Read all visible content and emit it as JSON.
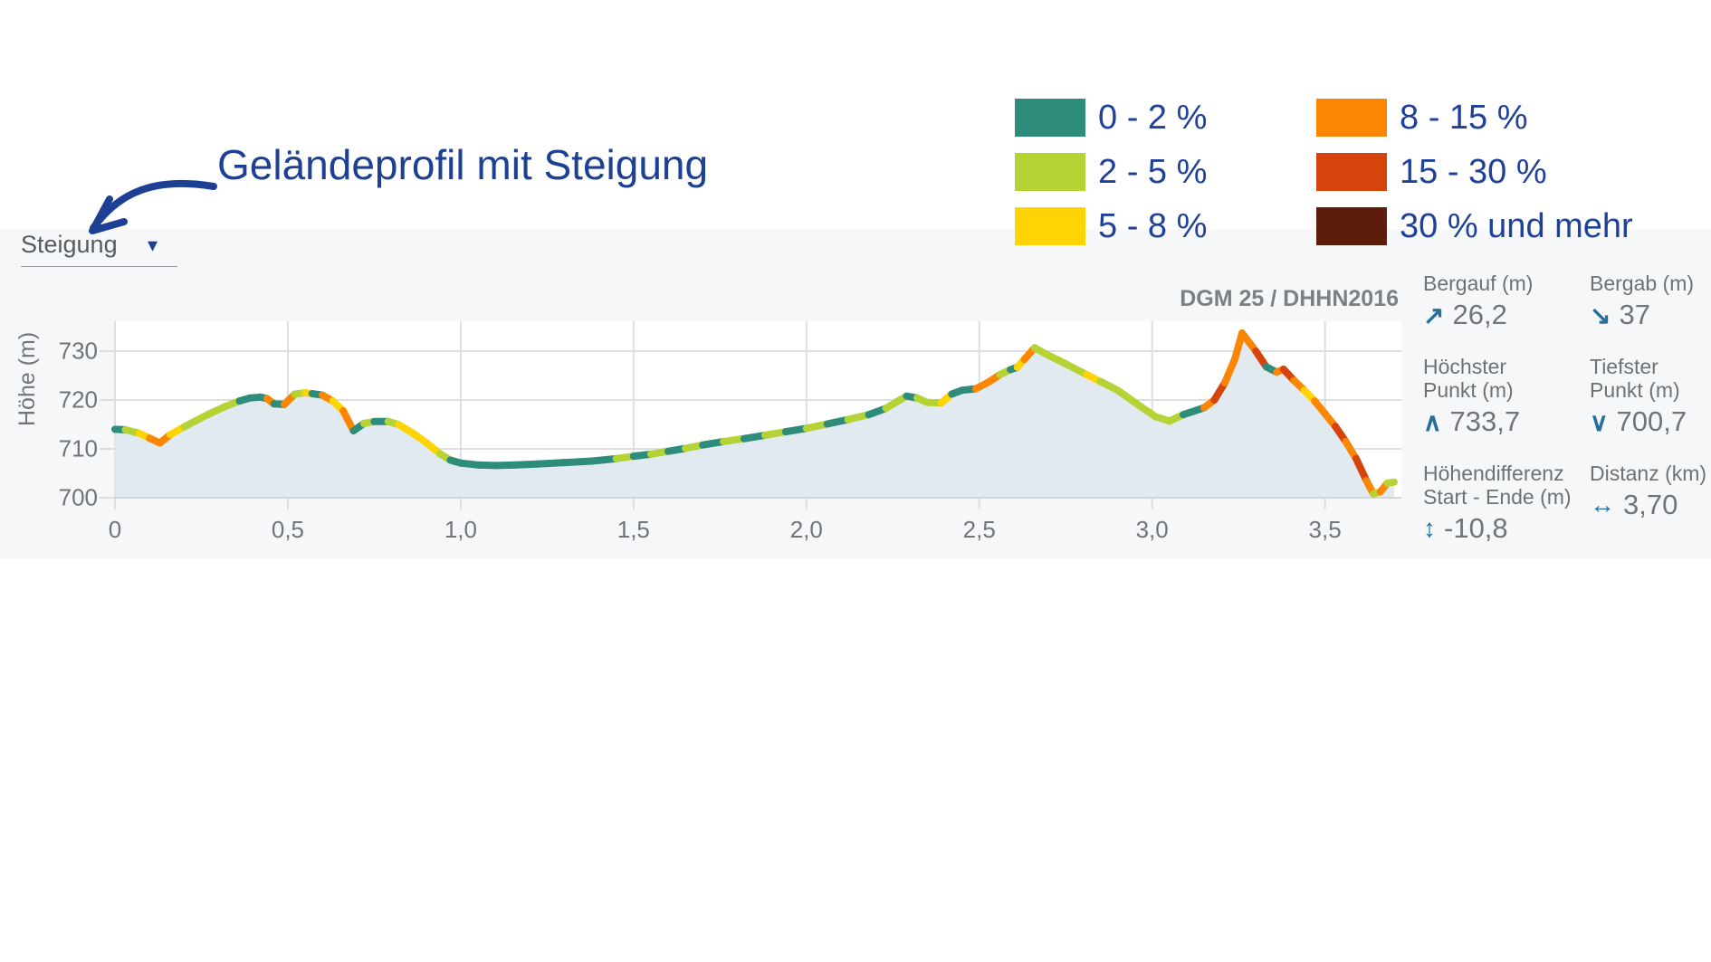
{
  "annotation": {
    "text": "Geländeprofil mit Steigung",
    "color": "#1e4094"
  },
  "dropdown": {
    "label": "Steigung",
    "caret_icon": "▾"
  },
  "legend": {
    "items": [
      {
        "label": "0 - 2 %",
        "color": "#2d8d7a"
      },
      {
        "label": "2 - 5 %",
        "color": "#b5d335"
      },
      {
        "label": "5 - 8 %",
        "color": "#ffd404"
      },
      {
        "label": "8 - 15 %",
        "color": "#fb8604"
      },
      {
        "label": "15 - 30 %",
        "color": "#d6430c"
      },
      {
        "label": "30 % und mehr",
        "color": "#5e1c0a"
      }
    ]
  },
  "chart": {
    "source_label": "DGM 25 / DHHN2016",
    "y_axis_title": "Höhe (m)"
  },
  "stats": {
    "items": [
      {
        "key": "bergauf",
        "label_lines": [
          "Bergauf (m)"
        ],
        "icon": "↗",
        "icon_name": "uphill-arrow-icon",
        "value": "26,2"
      },
      {
        "key": "bergab",
        "label_lines": [
          "Bergab (m)"
        ],
        "icon": "↘",
        "icon_name": "downhill-arrow-icon",
        "value": "37"
      },
      {
        "key": "hoechster-punkt",
        "label_lines": [
          "Höchster",
          "Punkt (m)"
        ],
        "icon": "∧",
        "icon_name": "chevron-up-icon",
        "value": "733,7"
      },
      {
        "key": "tiefster-punkt",
        "label_lines": [
          "Tiefster",
          "Punkt (m)"
        ],
        "icon": "∨",
        "icon_name": "chevron-down-icon",
        "value": "700,7"
      },
      {
        "key": "hoehendifferenz",
        "label_lines": [
          "Höhendifferenz",
          "Start - Ende (m)"
        ],
        "icon": "↕",
        "icon_name": "vertical-arrows-icon",
        "value": "-10,8"
      },
      {
        "key": "distanz",
        "label_lines": [
          "Distanz (km)"
        ],
        "icon": "↔",
        "icon_name": "horizontal-arrows-icon",
        "value": "3,70"
      }
    ]
  },
  "chart_data": {
    "type": "area",
    "title": "Geländeprofil mit Steigung",
    "xlabel": "Distanz (km)",
    "ylabel": "Höhe (m)",
    "xlim": [
      0,
      3.7
    ],
    "ylim": [
      700,
      736
    ],
    "grid": true,
    "xticks": [
      0,
      0.5,
      1.0,
      1.5,
      2.0,
      2.5,
      3.0,
      3.5
    ],
    "xtick_labels": [
      "0",
      "0,5",
      "1,0",
      "1,5",
      "2,0",
      "2,5",
      "3,0",
      "3,5"
    ],
    "yticks": [
      700,
      710,
      720,
      730
    ],
    "area_fill": "#e1eaf0",
    "slope_colors": {
      "0-2": "#2d8d7a",
      "2-5": "#b5d335",
      "5-8": "#ffd404",
      "8-15": "#fb8604",
      "15-30": "#d6430c",
      "30+": "#5e1c0a"
    },
    "summary": {
      "bergauf_m": 26.2,
      "bergab_m": 37,
      "hoechster_punkt_m": 733.7,
      "tiefster_punkt_m": 700.7,
      "hoehendifferenz_start_ende_m": -10.8,
      "distanz_km": 3.7
    },
    "profile": [
      [
        0.0,
        714.0,
        ""
      ],
      [
        0.03,
        713.9,
        "0-2"
      ],
      [
        0.07,
        713.2,
        "2-5"
      ],
      [
        0.1,
        712.2,
        "5-8"
      ],
      [
        0.13,
        711.2,
        "8-15"
      ],
      [
        0.16,
        712.9,
        "8-15"
      ],
      [
        0.2,
        714.5,
        "5-8"
      ],
      [
        0.24,
        716.0,
        "2-5"
      ],
      [
        0.28,
        717.4,
        "2-5"
      ],
      [
        0.32,
        718.7,
        "2-5"
      ],
      [
        0.36,
        719.8,
        "2-5"
      ],
      [
        0.39,
        720.4,
        "0-2"
      ],
      [
        0.42,
        720.6,
        "0-2"
      ],
      [
        0.44,
        720.3,
        "0-2"
      ],
      [
        0.46,
        719.2,
        "8-15"
      ],
      [
        0.49,
        719.1,
        "0-2"
      ],
      [
        0.52,
        721.2,
        "8-15"
      ],
      [
        0.55,
        721.5,
        "2-5"
      ],
      [
        0.57,
        721.3,
        "5-8"
      ],
      [
        0.6,
        721.0,
        "0-2"
      ],
      [
        0.63,
        719.8,
        "8-15"
      ],
      [
        0.66,
        717.8,
        "5-8"
      ],
      [
        0.69,
        713.7,
        "8-15"
      ],
      [
        0.72,
        715.2,
        "0-2"
      ],
      [
        0.75,
        715.6,
        "2-5"
      ],
      [
        0.79,
        715.6,
        "0-2"
      ],
      [
        0.82,
        715.0,
        "2-5"
      ],
      [
        0.86,
        713.3,
        "5-8"
      ],
      [
        0.9,
        711.3,
        "5-8"
      ],
      [
        0.94,
        709.0,
        "5-8"
      ],
      [
        0.97,
        707.7,
        "2-5"
      ],
      [
        1.0,
        707.1,
        "0-2"
      ],
      [
        1.05,
        706.7,
        "0-2"
      ],
      [
        1.1,
        706.6,
        "0-2"
      ],
      [
        1.16,
        706.7,
        "0-2"
      ],
      [
        1.22,
        706.9,
        "0-2"
      ],
      [
        1.3,
        707.2,
        "0-2"
      ],
      [
        1.38,
        707.5,
        "0-2"
      ],
      [
        1.45,
        708.0,
        "0-2"
      ],
      [
        1.5,
        708.5,
        "2-5"
      ],
      [
        1.55,
        708.9,
        "0-2"
      ],
      [
        1.6,
        709.5,
        "2-5"
      ],
      [
        1.65,
        710.1,
        "0-2"
      ],
      [
        1.7,
        710.8,
        "2-5"
      ],
      [
        1.76,
        711.5,
        "0-2"
      ],
      [
        1.82,
        712.1,
        "2-5"
      ],
      [
        1.88,
        712.8,
        "0-2"
      ],
      [
        1.94,
        713.5,
        "2-5"
      ],
      [
        2.0,
        714.2,
        "0-2"
      ],
      [
        2.06,
        715.1,
        "2-5"
      ],
      [
        2.12,
        716.0,
        "0-2"
      ],
      [
        2.18,
        717.0,
        "2-5"
      ],
      [
        2.23,
        718.3,
        "0-2"
      ],
      [
        2.26,
        719.6,
        "2-5"
      ],
      [
        2.29,
        720.8,
        "2-5"
      ],
      [
        2.32,
        720.4,
        "0-2"
      ],
      [
        2.35,
        719.5,
        "2-5"
      ],
      [
        2.39,
        719.4,
        "2-5"
      ],
      [
        2.42,
        721.2,
        "5-8"
      ],
      [
        2.45,
        722.0,
        "0-2"
      ],
      [
        2.49,
        722.3,
        "0-2"
      ],
      [
        2.53,
        723.8,
        "8-15"
      ],
      [
        2.56,
        725.2,
        "8-15"
      ],
      [
        2.59,
        726.2,
        "2-5"
      ],
      [
        2.61,
        726.7,
        "0-2"
      ],
      [
        2.63,
        728.3,
        "5-8"
      ],
      [
        2.66,
        730.7,
        "8-15"
      ],
      [
        2.69,
        729.5,
        "2-5"
      ],
      [
        2.75,
        727.4,
        "2-5"
      ],
      [
        2.81,
        725.2,
        "2-5"
      ],
      [
        2.85,
        723.8,
        "5-8"
      ],
      [
        2.9,
        722.0,
        "2-5"
      ],
      [
        2.96,
        719.0,
        "2-5"
      ],
      [
        3.01,
        716.6,
        "2-5"
      ],
      [
        3.05,
        715.7,
        "2-5"
      ],
      [
        3.09,
        717.0,
        "2-5"
      ],
      [
        3.12,
        717.7,
        "0-2"
      ],
      [
        3.15,
        718.4,
        "0-2"
      ],
      [
        3.18,
        720.0,
        "8-15"
      ],
      [
        3.21,
        723.5,
        "15-30"
      ],
      [
        3.24,
        728.5,
        "8-15"
      ],
      [
        3.26,
        733.7,
        "8-15"
      ],
      [
        3.3,
        730.0,
        "8-15"
      ],
      [
        3.33,
        726.8,
        "15-30"
      ],
      [
        3.36,
        725.7,
        "0-2"
      ],
      [
        3.38,
        726.3,
        "8-15"
      ],
      [
        3.41,
        724.0,
        "15-30"
      ],
      [
        3.44,
        722.0,
        "8-15"
      ],
      [
        3.47,
        719.8,
        "5-8"
      ],
      [
        3.5,
        717.2,
        "8-15"
      ],
      [
        3.53,
        714.6,
        "8-15"
      ],
      [
        3.56,
        711.5,
        "15-30"
      ],
      [
        3.59,
        708.0,
        "8-15"
      ],
      [
        3.62,
        703.5,
        "15-30"
      ],
      [
        3.64,
        700.8,
        "8-15"
      ],
      [
        3.66,
        701.2,
        "2-5"
      ],
      [
        3.68,
        703.0,
        "8-15"
      ],
      [
        3.7,
        703.2,
        "2-5"
      ]
    ]
  }
}
